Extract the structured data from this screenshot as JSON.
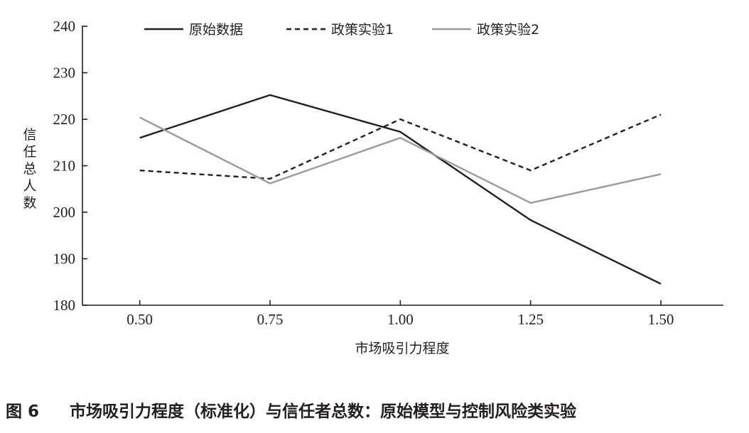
{
  "caption": {
    "figure_number": "图 6",
    "title": "市场吸引力程度（标准化）与信任者总数：原始模型与控制风险类实验"
  },
  "chart_data": {
    "type": "line",
    "title": "",
    "xlabel": "市场吸引力程度",
    "ylabel": "信任总人数",
    "x": [
      0.5,
      0.75,
      1.0,
      1.25,
      1.5
    ],
    "x_tick_labels": [
      "0.50",
      "0.75",
      "1.00",
      "1.25",
      "1.50"
    ],
    "y_ticks": [
      180,
      190,
      200,
      210,
      220,
      230,
      240
    ],
    "xlim": [
      0.39,
      1.62
    ],
    "ylim": [
      180,
      240
    ],
    "grid": false,
    "legend_position": "top",
    "series": [
      {
        "name": "原始数据",
        "values": [
          216,
          225.2,
          217.3,
          198.3,
          184.6
        ],
        "color": "#231f20",
        "dash": "solid"
      },
      {
        "name": "政策实验1",
        "values": [
          209,
          207.2,
          220,
          209,
          221
        ],
        "color": "#231f20",
        "dash": "dashed"
      },
      {
        "name": "政策实验2",
        "values": [
          220.4,
          206.2,
          216,
          202,
          208.2
        ],
        "color": "#9a9a9a",
        "dash": "solid"
      }
    ]
  }
}
